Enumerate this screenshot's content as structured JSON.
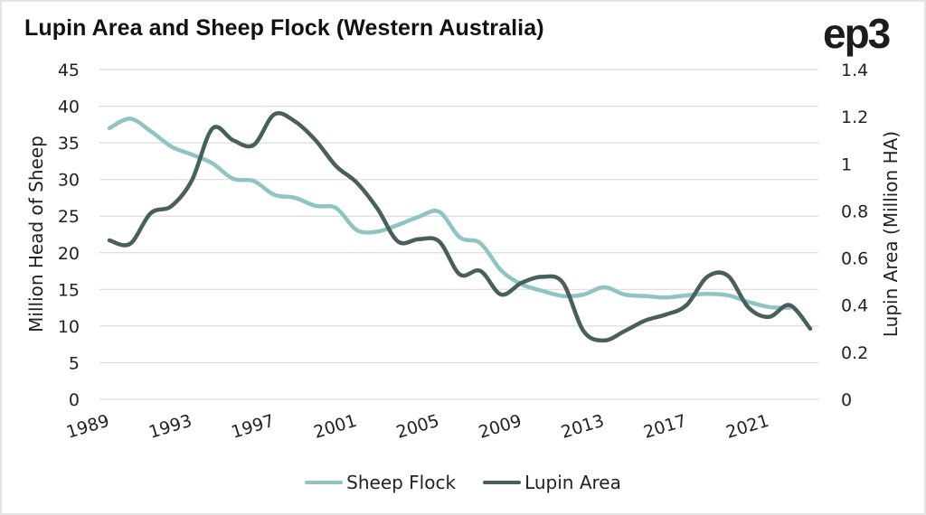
{
  "header": {
    "title": "Lupin Area and Sheep Flock (Western Australia)",
    "logo": "ep3"
  },
  "chart_data": {
    "type": "line",
    "title": "Lupin Area and Sheep Flock (Western Australia)",
    "xlabel": "",
    "ylabel": "Million Head of Sheep",
    "y2label": "Lupin Area (Million HA)",
    "ylim": [
      0,
      45
    ],
    "y2lim": [
      0,
      1.4
    ],
    "yticks": [
      "0",
      "5",
      "10",
      "15",
      "20",
      "25",
      "30",
      "35",
      "40",
      "45"
    ],
    "y2ticks": [
      "0",
      "0.2",
      "0.4",
      "0.6",
      "0.8",
      "1",
      "1.2",
      "1.4"
    ],
    "xticks": [
      "1989",
      "1993",
      "1997",
      "2001",
      "2005",
      "2009",
      "2013",
      "2017",
      "2021"
    ],
    "x": [
      1989,
      1990,
      1991,
      1992,
      1993,
      1994,
      1995,
      1996,
      1997,
      1998,
      1999,
      2000,
      2001,
      2002,
      2003,
      2004,
      2005,
      2006,
      2007,
      2008,
      2009,
      2010,
      2011,
      2012,
      2013,
      2014,
      2015,
      2016,
      2017,
      2018,
      2019,
      2020,
      2021,
      2022,
      2023
    ],
    "grid": true,
    "legend_position": "bottom",
    "series": [
      {
        "name": "Sheep Flock",
        "axis": "left",
        "color": "#8fc4c2",
        "values": [
          37.0,
          38.3,
          36.6,
          34.5,
          33.4,
          32.2,
          30.1,
          29.8,
          27.9,
          27.5,
          26.4,
          26.1,
          23.1,
          22.9,
          23.8,
          24.9,
          25.6,
          22.1,
          21.3,
          17.6,
          15.7,
          14.8,
          14.1,
          14.3,
          15.3,
          14.3,
          14.1,
          13.9,
          14.2,
          14.4,
          14.2,
          13.3,
          12.6,
          12.5,
          null
        ]
      },
      {
        "name": "Lupin Area",
        "axis": "right",
        "color": "#485f5e",
        "values": [
          0.675,
          0.66,
          0.79,
          0.82,
          0.93,
          1.15,
          1.1,
          1.08,
          1.21,
          1.18,
          1.1,
          0.99,
          0.92,
          0.81,
          0.67,
          0.68,
          0.67,
          0.53,
          0.545,
          0.445,
          0.495,
          0.52,
          0.495,
          0.29,
          0.25,
          0.29,
          0.335,
          0.36,
          0.4,
          0.52,
          0.525,
          0.39,
          0.35,
          0.4,
          0.3
        ]
      }
    ]
  },
  "legend": {
    "items": [
      "Sheep Flock",
      "Lupin Area"
    ]
  }
}
